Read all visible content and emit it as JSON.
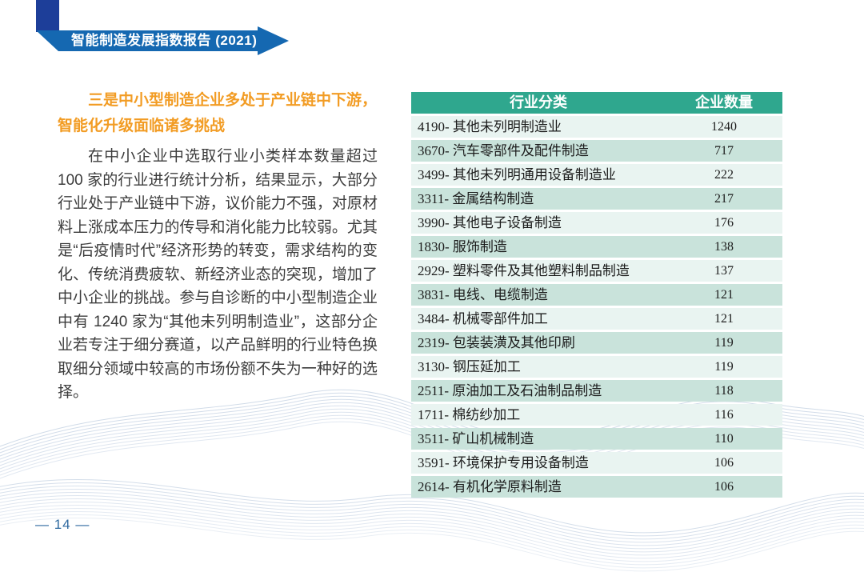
{
  "banner": {
    "title": "智能制造发展指数报告 (2021)"
  },
  "heading": "三是中小型制造企业多处于产业链中下游，智能化升级面临诸多挑战",
  "paragraph": "在中小企业中选取行业小类样本数量超过 100 家的行业进行统计分析，结果显示，大部分行业处于产业链中下游，议价能力不强，对原材料上涨成本压力的传导和消化能力比较弱。尤其是“后疫情时代”经济形势的转变，需求结构的变化、传统消费疲软、新经济业态的突现，增加了中小企业的挑战。参与自诊断的中小型制造企业中有 1240 家为“其他未列明制造业”，这部分企业若专注于细分赛道，以产品鲜明的行业特色换取细分领域中较高的市场份额不失为一种好的选择。",
  "table": {
    "headers": [
      "行业分类",
      "企业数量"
    ],
    "rows": [
      {
        "label": "4190- 其他未列明制造业",
        "count": "1240"
      },
      {
        "label": "3670- 汽车零部件及配件制造",
        "count": "717"
      },
      {
        "label": "3499- 其他未列明通用设备制造业",
        "count": "222"
      },
      {
        "label": "3311- 金属结构制造",
        "count": "217"
      },
      {
        "label": "3990- 其他电子设备制造",
        "count": "176"
      },
      {
        "label": "1830- 服饰制造",
        "count": "138"
      },
      {
        "label": "2929- 塑料零件及其他塑料制品制造",
        "count": "137"
      },
      {
        "label": "3831- 电线、电缆制造",
        "count": "121"
      },
      {
        "label": "3484- 机械零部件加工",
        "count": "121"
      },
      {
        "label": "2319- 包装装潢及其他印刷",
        "count": "119"
      },
      {
        "label": "3130- 钢压延加工",
        "count": "119"
      },
      {
        "label": "2511- 原油加工及石油制品制造",
        "count": "118"
      },
      {
        "label": "1711- 棉纺纱加工",
        "count": "116"
      },
      {
        "label": "3511- 矿山机械制造",
        "count": "110"
      },
      {
        "label": "3591- 环境保护专用设备制造",
        "count": "106"
      },
      {
        "label": "2614- 有机化学原料制造",
        "count": "106"
      }
    ]
  },
  "page_number": "— 14 —",
  "colors": {
    "banner_blue": "#1568b1",
    "bar_navy": "#1d3e99",
    "heading_orange": "#f29c24",
    "table_header_teal": "#2fa78e",
    "row_light": "#e9f4f1",
    "row_green": "#c9e3db",
    "page_number_blue": "#2f6aa0",
    "body_text": "#3c3c3c",
    "wave_blue": "#aabdd6"
  }
}
